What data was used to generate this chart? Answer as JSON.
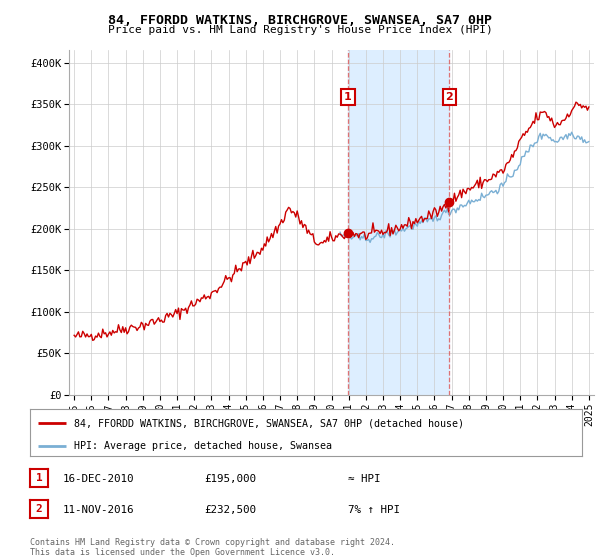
{
  "title": "84, FFORDD WATKINS, BIRCHGROVE, SWANSEA, SA7 0HP",
  "subtitle": "Price paid vs. HM Land Registry's House Price Index (HPI)",
  "xlim": [
    1994.7,
    2025.3
  ],
  "ylim": [
    0,
    415000
  ],
  "yticks": [
    0,
    50000,
    100000,
    150000,
    200000,
    250000,
    300000,
    350000,
    400000
  ],
  "ytick_labels": [
    "£0",
    "£50K",
    "£100K",
    "£150K",
    "£200K",
    "£250K",
    "£300K",
    "£350K",
    "£400K"
  ],
  "xticks": [
    1995,
    1996,
    1997,
    1998,
    1999,
    2000,
    2001,
    2002,
    2003,
    2004,
    2005,
    2006,
    2007,
    2008,
    2009,
    2010,
    2011,
    2012,
    2013,
    2014,
    2015,
    2016,
    2017,
    2018,
    2019,
    2020,
    2021,
    2022,
    2023,
    2024,
    2025
  ],
  "sale1_x": 2010.96,
  "sale1_y": 195000,
  "sale2_x": 2016.87,
  "sale2_y": 232500,
  "line_color_red": "#cc0000",
  "line_color_blue": "#7aafd4",
  "shaded_region_color": "#ddeeff",
  "vline_color": "#dd6666",
  "annotation_box_color": "#cc0000",
  "legend_label_red": "84, FFORDD WATKINS, BIRCHGROVE, SWANSEA, SA7 0HP (detached house)",
  "legend_label_blue": "HPI: Average price, detached house, Swansea",
  "table_row1": [
    "1",
    "16-DEC-2010",
    "£195,000",
    "≈ HPI"
  ],
  "table_row2": [
    "2",
    "11-NOV-2016",
    "£232,500",
    "7% ↑ HPI"
  ],
  "footer": "Contains HM Land Registry data © Crown copyright and database right 2024.\nThis data is licensed under the Open Government Licence v3.0.",
  "background_color": "#ffffff"
}
